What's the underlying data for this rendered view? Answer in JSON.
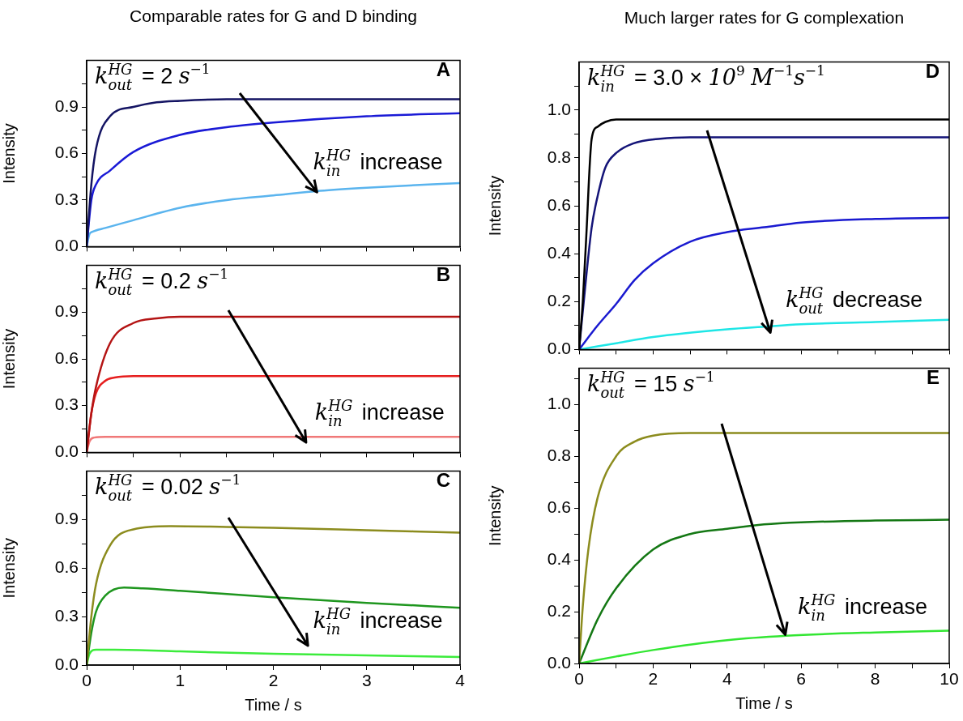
{
  "chart_data": [
    {
      "type": "line",
      "title": "Comparable rates for G and D binding",
      "ylabel": "Intensity",
      "tick_labels": "y",
      "xlim": [
        0,
        4
      ],
      "ylim": [
        0,
        1.2
      ],
      "xticks": [
        0,
        {
          "value": 0.5,
          "label": null
        },
        1,
        {
          "value": 1.5,
          "label": null
        },
        2,
        {
          "value": 2.5,
          "label": null
        },
        3,
        {
          "value": 3.5,
          "label": null
        },
        4
      ],
      "yticks": [
        {
          "value": 0,
          "label": "0.0"
        },
        {
          "value": 0.15,
          "label": null
        },
        0.3,
        {
          "value": 0.45,
          "label": null
        },
        0.6,
        {
          "value": 0.75,
          "label": null
        },
        0.9,
        {
          "value": 1.05,
          "label": null
        }
      ],
      "annotations": [
        "k$_{out}$$^{HG}$ = 2 s$^{−1}$",
        "A",
        "k$_{in}$$^{HG}$ increase"
      ],
      "series": [
        {
          "color": "#141463",
          "x": [
            0,
            0.05,
            0.1,
            0.25,
            0.5,
            0.75,
            1,
            1.5,
            2,
            3,
            4
          ],
          "values": [
            0,
            0.4,
            0.63,
            0.84,
            0.9,
            0.93,
            0.94,
            0.95,
            0.95,
            0.95,
            0.95
          ]
        },
        {
          "color": "#1a1ad6",
          "x": [
            0,
            0.05,
            0.1,
            0.25,
            0.5,
            1,
            1.5,
            2,
            3,
            4
          ],
          "values": [
            0,
            0.3,
            0.4,
            0.49,
            0.61,
            0.72,
            0.77,
            0.8,
            0.84,
            0.86
          ]
        },
        {
          "color": "#5ab4ee",
          "x": [
            0,
            0.03,
            0.06,
            0.2,
            0.5,
            1,
            1.5,
            2,
            2.5,
            3,
            4
          ],
          "values": [
            0,
            0.08,
            0.095,
            0.12,
            0.17,
            0.25,
            0.3,
            0.33,
            0.36,
            0.38,
            0.41
          ]
        }
      ]
    },
    {
      "type": "line",
      "ylabel": "Intensity",
      "tick_labels": "y",
      "xlim": [
        0,
        4
      ],
      "ylim": [
        0,
        1.2
      ],
      "xticks": [
        0,
        {
          "value": 0.5,
          "label": null
        },
        1,
        {
          "value": 1.5,
          "label": null
        },
        2,
        {
          "value": 2.5,
          "label": null
        },
        3,
        {
          "value": 3.5,
          "label": null
        },
        4
      ],
      "yticks": [
        {
          "value": 0,
          "label": "0.0"
        },
        {
          "value": 0.15,
          "label": null
        },
        0.3,
        {
          "value": 0.45,
          "label": null
        },
        0.6,
        {
          "value": 0.75,
          "label": null
        },
        0.9,
        {
          "value": 1.05,
          "label": null
        }
      ],
      "annotations": [
        "k$_{out}$$^{HG}$ = 0.2 s$^{−1}$",
        "B",
        "k$_{in}$$^{HG}$ increase"
      ],
      "series": [
        {
          "color": "#b41414",
          "x": [
            0,
            0.05,
            0.1,
            0.25,
            0.5,
            0.75,
            1,
            4
          ],
          "values": [
            0,
            0.25,
            0.42,
            0.7,
            0.83,
            0.86,
            0.87,
            0.87
          ]
        },
        {
          "color": "#e61e1e",
          "x": [
            0,
            0.05,
            0.1,
            0.2,
            0.3,
            0.5,
            4
          ],
          "values": [
            0,
            0.25,
            0.38,
            0.46,
            0.48,
            0.49,
            0.49
          ]
        },
        {
          "color": "#f07878",
          "x": [
            0,
            0.03,
            0.08,
            0.2,
            4
          ],
          "values": [
            0,
            0.07,
            0.095,
            0.1,
            0.1
          ]
        }
      ]
    },
    {
      "type": "line",
      "ylabel": "Intensity",
      "xlabel": "Time / s",
      "xlim": [
        0,
        4
      ],
      "ylim": [
        0,
        1.2
      ],
      "xticks": [
        0,
        {
          "value": 0.5,
          "label": null
        },
        1,
        {
          "value": 1.5,
          "label": null
        },
        2,
        {
          "value": 2.5,
          "label": null
        },
        3,
        {
          "value": 3.5,
          "label": null
        },
        4
      ],
      "yticks": [
        {
          "value": 0,
          "label": "0.0"
        },
        {
          "value": 0.15,
          "label": null
        },
        0.3,
        {
          "value": 0.45,
          "label": null
        },
        0.6,
        {
          "value": 0.75,
          "label": null
        },
        0.9,
        {
          "value": 1.05,
          "label": null
        }
      ],
      "annotations": [
        "k$_{out}$$^{HG}$ = 0.02 s$^{−1}$",
        "C",
        "k$_{in}$$^{HG}$ increase"
      ],
      "series": [
        {
          "color": "#8c8c1e",
          "x": [
            0,
            0.05,
            0.1,
            0.25,
            0.5,
            0.9,
            1.5,
            2,
            3,
            4
          ],
          "values": [
            0,
            0.3,
            0.5,
            0.74,
            0.84,
            0.86,
            0.855,
            0.85,
            0.835,
            0.82
          ]
        },
        {
          "color": "#1e961e",
          "x": [
            0,
            0.05,
            0.1,
            0.2,
            0.4,
            0.6,
            1,
            2,
            3,
            4
          ],
          "values": [
            0,
            0.2,
            0.33,
            0.43,
            0.48,
            0.475,
            0.46,
            0.42,
            0.385,
            0.355
          ]
        },
        {
          "color": "#3cec3c",
          "x": [
            0,
            0.03,
            0.1,
            0.3,
            1,
            2,
            3,
            4
          ],
          "values": [
            0,
            0.07,
            0.095,
            0.095,
            0.085,
            0.07,
            0.06,
            0.05
          ]
        }
      ]
    },
    {
      "type": "line",
      "title": "Much larger rates for G complexation",
      "ylabel": "Intensity",
      "tick_labels": "y",
      "xlim": [
        0,
        10
      ],
      "ylim": [
        0,
        1.2
      ],
      "xticks": [
        0,
        {
          "value": 1,
          "label": null
        },
        2,
        {
          "value": 3,
          "label": null
        },
        4,
        {
          "value": 5,
          "label": null
        },
        6,
        {
          "value": 7,
          "label": null
        },
        8,
        {
          "value": 9,
          "label": null
        },
        10
      ],
      "yticks": [
        {
          "value": 0,
          "label": "0.0"
        },
        {
          "value": 0.1,
          "label": null
        },
        0.2,
        {
          "value": 0.3,
          "label": null
        },
        0.4,
        {
          "value": 0.5,
          "label": null
        },
        0.6,
        {
          "value": 0.7,
          "label": null
        },
        0.8,
        {
          "value": 0.9,
          "label": null
        },
        {
          "value": 1,
          "label": "1.0"
        },
        {
          "value": 1.1,
          "label": null
        }
      ],
      "annotations": [
        "k$_{in}$$^{HG}$ = 3.0 × 10$^{9}$ M$^{−1}$s$^{−1}$",
        "D",
        "k$_{out}$$^{HG}$ decrease"
      ],
      "series": [
        {
          "color": "#000000",
          "x": [
            0,
            0.1,
            0.19,
            0.34,
            0.5,
            0.71,
            1,
            2,
            10
          ],
          "values": [
            0,
            0.2,
            0.46,
            0.88,
            0.93,
            0.95,
            0.96,
            0.96,
            0.96
          ]
        },
        {
          "color": "#141478",
          "x": [
            0,
            0.19,
            0.34,
            0.5,
            0.71,
            1,
            1.46,
            2.2,
            3,
            10
          ],
          "values": [
            0,
            0.3,
            0.51,
            0.64,
            0.76,
            0.82,
            0.86,
            0.88,
            0.886,
            0.886
          ]
        },
        {
          "color": "#1a1ad0",
          "x": [
            0,
            0.5,
            1,
            1.5,
            2,
            3,
            4,
            5,
            6,
            8,
            10
          ],
          "values": [
            0,
            0.1,
            0.19,
            0.29,
            0.36,
            0.45,
            0.49,
            0.51,
            0.53,
            0.545,
            0.55
          ]
        },
        {
          "color": "#1ee6e6",
          "x": [
            0,
            1,
            2,
            4,
            5,
            6,
            8,
            10
          ],
          "values": [
            0,
            0.026,
            0.052,
            0.084,
            0.095,
            0.105,
            0.115,
            0.124
          ]
        }
      ]
    },
    {
      "type": "line",
      "ylabel": "Intensity",
      "xlabel": "Time / s",
      "xlim": [
        0,
        10
      ],
      "ylim": [
        0,
        1.14
      ],
      "xticks": [
        0,
        {
          "value": 1,
          "label": null
        },
        2,
        {
          "value": 3,
          "label": null
        },
        4,
        {
          "value": 5,
          "label": null
        },
        6,
        {
          "value": 7,
          "label": null
        },
        8,
        {
          "value": 9,
          "label": null
        },
        10
      ],
      "yticks": [
        {
          "value": 0,
          "label": "0.0"
        },
        {
          "value": 0.1,
          "label": null
        },
        0.2,
        {
          "value": 0.3,
          "label": null
        },
        0.4,
        {
          "value": 0.5,
          "label": null
        },
        0.6,
        {
          "value": 0.7,
          "label": null
        },
        0.8,
        {
          "value": 0.9,
          "label": null
        },
        {
          "value": 1,
          "label": "1.0"
        },
        {
          "value": 1.1,
          "label": null
        }
      ],
      "annotations": [
        "k$_{out}$$^{HG}$ = 15 s$^{−1}$",
        "E",
        "k$_{in}$$^{HG}$ increase"
      ],
      "series": [
        {
          "color": "#8c8c1e",
          "x": [
            0,
            0.1,
            0.25,
            0.5,
            1,
            1.5,
            2,
            3,
            10
          ],
          "values": [
            0,
            0.22,
            0.44,
            0.64,
            0.8,
            0.857,
            0.88,
            0.89,
            0.89
          ]
        },
        {
          "color": "#147814",
          "x": [
            0,
            0.5,
            1,
            2,
            3,
            4,
            5,
            6,
            8,
            10
          ],
          "values": [
            0,
            0.17,
            0.29,
            0.44,
            0.5,
            0.52,
            0.537,
            0.545,
            0.552,
            0.555
          ]
        },
        {
          "color": "#32e632",
          "x": [
            0,
            1,
            2,
            4,
            5.6,
            8,
            10
          ],
          "values": [
            0,
            0.027,
            0.052,
            0.09,
            0.107,
            0.12,
            0.127
          ]
        }
      ]
    }
  ]
}
